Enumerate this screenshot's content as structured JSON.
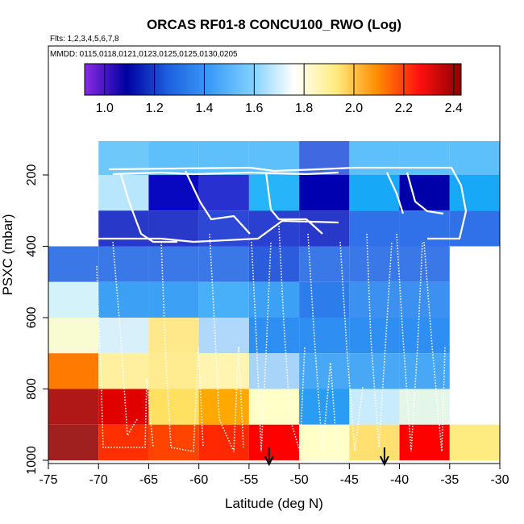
{
  "chart_data": {
    "type": "heatmap",
    "title": "ORCAS RF01-8 CONCU100_RWO (Log)",
    "flights_label": "Flts: 1,2,3,4,5,6,7,8",
    "dates_label": "MMDD: 0115,0118,0121,0123,0125,0125,0130,0205",
    "xlabel": "Latitude (deg N)",
    "ylabel": "PSXC (mbar)",
    "xlim": [
      -75,
      -30
    ],
    "ylim": [
      1000,
      0
    ],
    "x_ticks": [
      -75,
      -70,
      -65,
      -60,
      -55,
      -50,
      -45,
      -40,
      -35,
      -30
    ],
    "y_ticks": [
      200,
      400,
      600,
      800,
      1000
    ],
    "colorbar": {
      "range": [
        0.92,
        2.43
      ],
      "ticks": [
        1.0,
        1.2,
        1.4,
        1.6,
        1.8,
        2.0,
        2.2,
        2.4
      ],
      "tick_labels": [
        "1.0",
        "1.2",
        "1.4",
        "1.6",
        "1.8",
        "2.0",
        "2.2",
        "2.4"
      ],
      "colors": [
        "#8a2be2",
        "#0000a0",
        "#1e60e0",
        "#3a9cf8",
        "#80d0ff",
        "#ffffff",
        "#ffec80",
        "#ff8c00",
        "#ff1010",
        "#8b0000"
      ]
    },
    "cell_width_deg": 5,
    "cell_height_mbar": 100,
    "cells": [
      {
        "x": -70,
        "y": 100,
        "color": "#6ec8fa"
      },
      {
        "x": -65,
        "y": 100,
        "color": "#5ec0fa"
      },
      {
        "x": -60,
        "y": 100,
        "color": "#5ec0fa"
      },
      {
        "x": -55,
        "y": 100,
        "color": "#5ec0fa"
      },
      {
        "x": -50,
        "y": 100,
        "color": "#4068e0"
      },
      {
        "x": -45,
        "y": 100,
        "color": "#5ec0fa"
      },
      {
        "x": -40,
        "y": 100,
        "color": "#5ec0fa"
      },
      {
        "x": -35,
        "y": 100,
        "color": "#5ec0fa"
      },
      {
        "x": -70,
        "y": 200,
        "color": "#b8e6fc"
      },
      {
        "x": -65,
        "y": 200,
        "color": "#0808c0"
      },
      {
        "x": -60,
        "y": 200,
        "color": "#2830d0"
      },
      {
        "x": -55,
        "y": 200,
        "color": "#28b4f8"
      },
      {
        "x": -50,
        "y": 200,
        "color": "#0000b0"
      },
      {
        "x": -45,
        "y": 200,
        "color": "#18a8f8"
      },
      {
        "x": -40,
        "y": 200,
        "color": "#0000a8"
      },
      {
        "x": -35,
        "y": 200,
        "color": "#18a8f8"
      },
      {
        "x": -70,
        "y": 300,
        "color": "#2838c8"
      },
      {
        "x": -65,
        "y": 300,
        "color": "#2838c8"
      },
      {
        "x": -60,
        "y": 300,
        "color": "#2c48d4"
      },
      {
        "x": -55,
        "y": 300,
        "color": "#2a40d0"
      },
      {
        "x": -50,
        "y": 300,
        "color": "#2838c8"
      },
      {
        "x": -45,
        "y": 300,
        "color": "#3070e8"
      },
      {
        "x": -40,
        "y": 300,
        "color": "#3070e8"
      },
      {
        "x": -35,
        "y": 300,
        "color": "#3070e8"
      },
      {
        "x": -75,
        "y": 400,
        "color": "#3a78e8"
      },
      {
        "x": -70,
        "y": 400,
        "color": "#3a78e8"
      },
      {
        "x": -65,
        "y": 400,
        "color": "#3a78e8"
      },
      {
        "x": -60,
        "y": 400,
        "color": "#3a78e8"
      },
      {
        "x": -55,
        "y": 400,
        "color": "#2a5cdc"
      },
      {
        "x": -50,
        "y": 400,
        "color": "#3a78e8"
      },
      {
        "x": -45,
        "y": 400,
        "color": "#3a78e8"
      },
      {
        "x": -40,
        "y": 400,
        "color": "#3a78e8"
      },
      {
        "x": -75,
        "y": 500,
        "color": "#d4f2fa"
      },
      {
        "x": -70,
        "y": 500,
        "color": "#3ca0f4"
      },
      {
        "x": -65,
        "y": 500,
        "color": "#3ca0f4"
      },
      {
        "x": -60,
        "y": 500,
        "color": "#48b0f8"
      },
      {
        "x": -55,
        "y": 500,
        "color": "#3ca0f4"
      },
      {
        "x": -50,
        "y": 500,
        "color": "#2c7cec"
      },
      {
        "x": -45,
        "y": 500,
        "color": "#3c90f0"
      },
      {
        "x": -40,
        "y": 500,
        "color": "#3c90f0"
      },
      {
        "x": -75,
        "y": 600,
        "color": "#f8fcd0"
      },
      {
        "x": -70,
        "y": 600,
        "color": "#d8f0fa"
      },
      {
        "x": -65,
        "y": 600,
        "color": "#ffe88a"
      },
      {
        "x": -60,
        "y": 600,
        "color": "#b0d8fa"
      },
      {
        "x": -55,
        "y": 600,
        "color": "#2e8ef2"
      },
      {
        "x": -50,
        "y": 600,
        "color": "#2e8ef2"
      },
      {
        "x": -45,
        "y": 600,
        "color": "#2e8ef2"
      },
      {
        "x": -40,
        "y": 600,
        "color": "#2e8ef2"
      },
      {
        "x": -75,
        "y": 700,
        "color": "#ff7a00"
      },
      {
        "x": -70,
        "y": 700,
        "color": "#fff0a0"
      },
      {
        "x": -65,
        "y": 700,
        "color": "#ffec90"
      },
      {
        "x": -60,
        "y": 700,
        "color": "#fff4b0"
      },
      {
        "x": -55,
        "y": 700,
        "color": "#a8d4fa"
      },
      {
        "x": -50,
        "y": 700,
        "color": "#48a8f6"
      },
      {
        "x": -45,
        "y": 700,
        "color": "#48a8f6"
      },
      {
        "x": -40,
        "y": 700,
        "color": "#48a8f6"
      },
      {
        "x": -75,
        "y": 800,
        "color": "#b01818"
      },
      {
        "x": -70,
        "y": 800,
        "color": "#e00000"
      },
      {
        "x": -65,
        "y": 800,
        "color": "#ffe060"
      },
      {
        "x": -60,
        "y": 800,
        "color": "#ffa800"
      },
      {
        "x": -55,
        "y": 800,
        "color": "#ffffc8"
      },
      {
        "x": -50,
        "y": 800,
        "color": "#2a9cf4"
      },
      {
        "x": -45,
        "y": 800,
        "color": "#c8ecfc"
      },
      {
        "x": -40,
        "y": 800,
        "color": "#e4f6e8"
      },
      {
        "x": -75,
        "y": 900,
        "color": "#a02020"
      },
      {
        "x": -70,
        "y": 900,
        "color": "#ff3000"
      },
      {
        "x": -65,
        "y": 900,
        "color": "#ff4400"
      },
      {
        "x": -60,
        "y": 900,
        "color": "#ff2800"
      },
      {
        "x": -55,
        "y": 900,
        "color": "#ff0000"
      },
      {
        "x": -50,
        "y": 900,
        "color": "#ffffc8"
      },
      {
        "x": -45,
        "y": 900,
        "color": "#ffe070"
      },
      {
        "x": -40,
        "y": 900,
        "color": "#ff0000"
      },
      {
        "x": -35,
        "y": 900,
        "color": "#ffec80"
      }
    ],
    "markers": [
      {
        "type": "arrow-down",
        "lat": -53,
        "label": "arrow marker"
      },
      {
        "type": "arrow-down",
        "lat": -41.5,
        "label": "arrow marker"
      }
    ],
    "track_summary": "white flight-track lines overlaid",
    "track_color": "#ffffff"
  }
}
